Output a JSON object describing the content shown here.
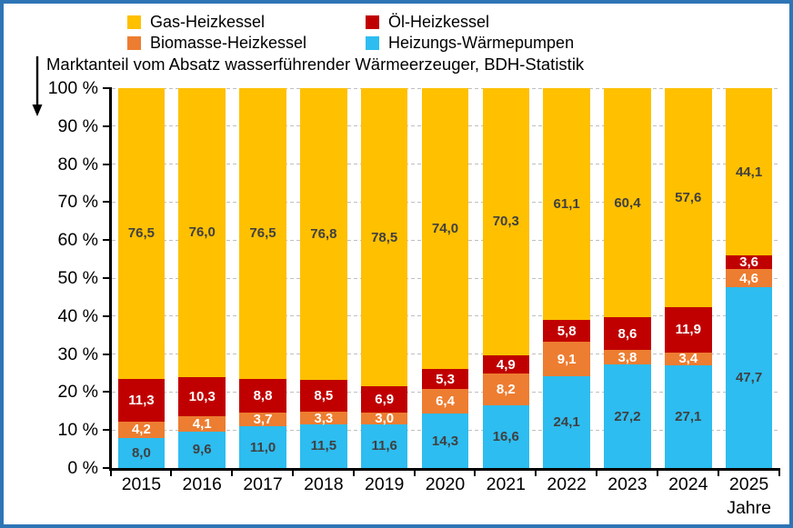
{
  "frame": {
    "border_color": "#2E75B6",
    "background": "#FFFFFF"
  },
  "legend": {
    "items": [
      {
        "label": "Gas-Heizkessel",
        "color": "#FFC000"
      },
      {
        "label": "Öl-Heizkessel",
        "color": "#C00000"
      },
      {
        "label": "Biomasse-Heizkessel",
        "color": "#ED7D31"
      },
      {
        "label": "Heizungs-Wärmepumpen",
        "color": "#2DBDF0"
      }
    ]
  },
  "header": {
    "title": "Marktanteil vom Absatz wasserführender Wärmeerzeuger, BDH-Statistik",
    "arrow_icon": "down-arrow"
  },
  "chart_data": {
    "type": "bar",
    "stacked": true,
    "title": "Marktanteil vom Absatz wasserführender Wärmeerzeuger, BDH-Statistik",
    "categories": [
      "2015",
      "2016",
      "2017",
      "2018",
      "2019",
      "2020",
      "2021",
      "2022",
      "2023",
      "2024",
      "2025"
    ],
    "xlabel": "Jahre",
    "ylim": [
      0,
      100
    ],
    "ytick_step": 10,
    "ytick_suffix": " %",
    "grid": "horizontal-dashed",
    "legend_position": "top",
    "decimal_separator": ",",
    "series": [
      {
        "name": "Heizungs-Wärmepumpen",
        "color": "#2DBDF0",
        "label_color": "#404040",
        "values": [
          8.0,
          9.6,
          11.0,
          11.5,
          11.6,
          14.3,
          16.6,
          24.1,
          27.2,
          27.1,
          47.7
        ]
      },
      {
        "name": "Biomasse-Heizkessel",
        "color": "#ED7D31",
        "label_color": "#FFFFFF",
        "values": [
          4.2,
          4.1,
          3.7,
          3.3,
          3.0,
          6.4,
          8.2,
          9.1,
          3.8,
          3.4,
          4.6
        ]
      },
      {
        "name": "Öl-Heizkessel",
        "color": "#C00000",
        "label_color": "#FFFFFF",
        "values": [
          11.3,
          10.3,
          8.8,
          8.5,
          6.9,
          5.3,
          4.9,
          5.8,
          8.6,
          11.9,
          3.6
        ]
      },
      {
        "name": "Gas-Heizkessel",
        "color": "#FFC000",
        "label_color": "#404040",
        "values": [
          76.5,
          76.0,
          76.5,
          76.8,
          78.5,
          74.0,
          70.3,
          61.1,
          60.4,
          57.6,
          44.1
        ]
      }
    ]
  }
}
